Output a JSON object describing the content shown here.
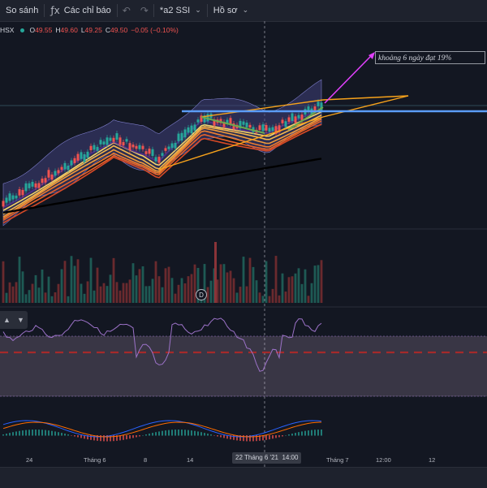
{
  "toolbar": {
    "compare_label": "So sánh",
    "indicators_label": "Các chỉ báo",
    "indicators_icon": "fx-icon",
    "layout_label": "*a2 SSI",
    "profile_label": "Hồ sơ",
    "undo_icon": "undo-icon",
    "redo_icon": "redo-icon"
  },
  "legend": {
    "exchange": "HSX",
    "open_label": "O",
    "open_value": "49.55",
    "high_label": "H",
    "high_value": "49.60",
    "low_label": "L",
    "low_value": "49.25",
    "close_label": "C",
    "close_value": "49.50",
    "change": "−0.05 (−0.10%)"
  },
  "annotation": {
    "text": "khoảng 6 ngày đạt 19%"
  },
  "dividend_badge": "D",
  "time_axis": {
    "labels": [
      "24",
      "Tháng 6",
      "8",
      "14",
      "Tháng 7",
      "12:00",
      "12"
    ],
    "crosshair_label": "22 Tháng 6 '21",
    "crosshair_time": "14:00"
  },
  "colors": {
    "background": "#131722",
    "up": "#26a69a",
    "down": "#ef5350",
    "trendline": "#f7a21b",
    "support": "#5b9cf6",
    "bollinger_fill": "#3f3f7a",
    "rsi_line": "#9c72c8",
    "rsi_band": "#e8c8e8",
    "rsi_mid": "#a52a2a",
    "annotation_arrow": "#e040fb"
  }
}
